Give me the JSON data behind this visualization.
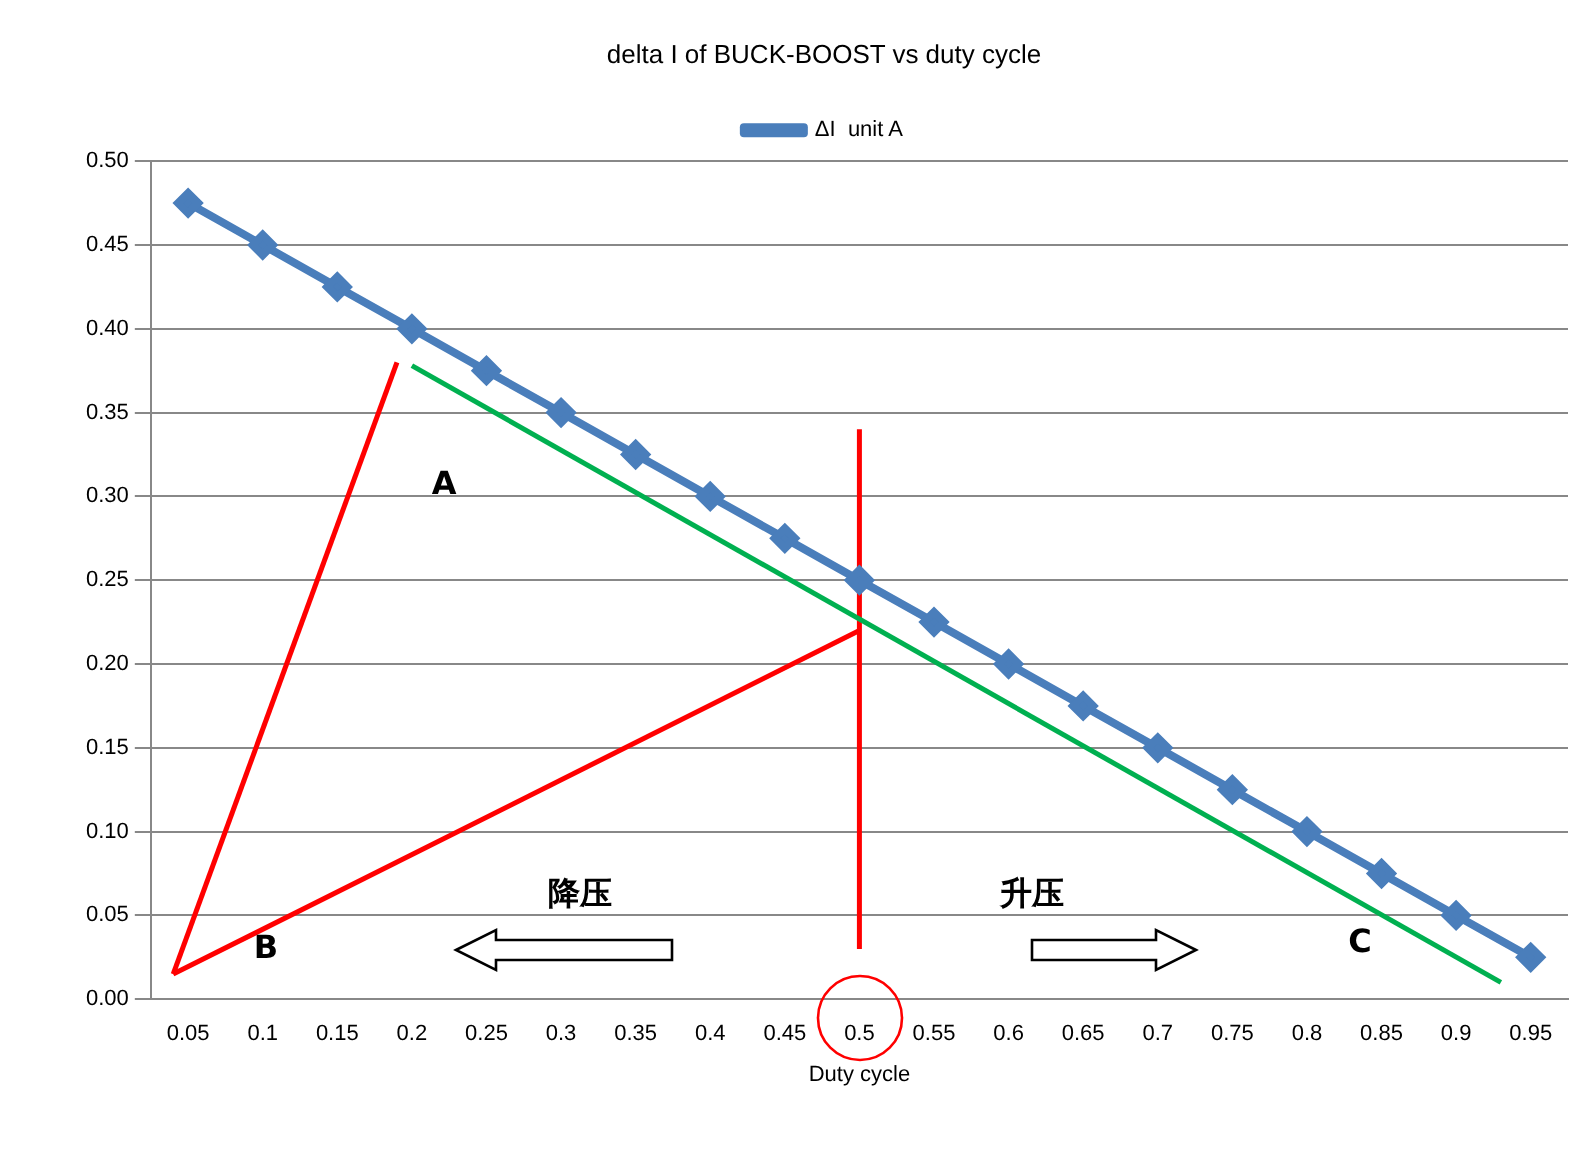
{
  "chart_data": {
    "type": "line",
    "title": "delta I of BUCK-BOOST vs duty cycle",
    "xlabel": "Duty cycle",
    "x": [
      0.05,
      0.1,
      0.15,
      0.2,
      0.25,
      0.3,
      0.35,
      0.4,
      0.45,
      0.5,
      0.55,
      0.6,
      0.65,
      0.7,
      0.75,
      0.8,
      0.85,
      0.9,
      0.95
    ],
    "series": [
      {
        "name": "ΔI  unit A",
        "color": "#4a7ebb",
        "marker": "diamond",
        "values": [
          0.475,
          0.45,
          0.425,
          0.4,
          0.375,
          0.35,
          0.325,
          0.3,
          0.275,
          0.25,
          0.225,
          0.2,
          0.175,
          0.15,
          0.125,
          0.1,
          0.075,
          0.05,
          0.025
        ]
      },
      {
        "type": "line",
        "color": "#ff0000",
        "marker": "none",
        "x": [
          0.04,
          0.19
        ],
        "values": [
          0.015,
          0.38
        ]
      },
      {
        "type": "line",
        "color": "#00b050",
        "marker": "none",
        "x": [
          0.2,
          0.93
        ],
        "values": [
          0.378,
          0.01
        ]
      },
      {
        "type": "line",
        "color": "#ff0000",
        "marker": "none",
        "x": [
          0.04,
          0.5
        ],
        "values": [
          0.015,
          0.22
        ]
      },
      {
        "type": "line",
        "color": "#ff0000",
        "marker": "none",
        "x": [
          0.5,
          0.5
        ],
        "values": [
          0.03,
          0.34
        ]
      }
    ],
    "xlim": [
      0.025,
      0.975
    ],
    "xticks": [
      0.05,
      0.1,
      0.15,
      0.2,
      0.25,
      0.3,
      0.35,
      0.4,
      0.45,
      0.5,
      0.55,
      0.6,
      0.65,
      0.7,
      0.75,
      0.8,
      0.85,
      0.9,
      0.95
    ],
    "ylim": [
      0,
      0.5
    ],
    "yticks": [
      {
        "value": 0,
        "label": "0.00"
      },
      {
        "value": 0.05,
        "label": "0.05"
      },
      {
        "value": 0.1,
        "label": "0.10"
      },
      {
        "value": 0.15,
        "label": "0.15"
      },
      {
        "value": 0.2,
        "label": "0.20"
      },
      {
        "value": 0.25,
        "label": "0.25"
      },
      {
        "value": 0.3,
        "label": "0.30"
      },
      {
        "value": 0.35,
        "label": "0.35"
      },
      {
        "value": 0.4,
        "label": "0.40"
      },
      {
        "value": 0.45,
        "label": "0.45"
      },
      {
        "value": 0.5,
        "label": "0.50"
      }
    ],
    "annotations": [
      "A",
      "B",
      "C",
      "降压",
      "升压"
    ],
    "grid": "y",
    "legend": "top",
    "line_style": "solid"
  }
}
